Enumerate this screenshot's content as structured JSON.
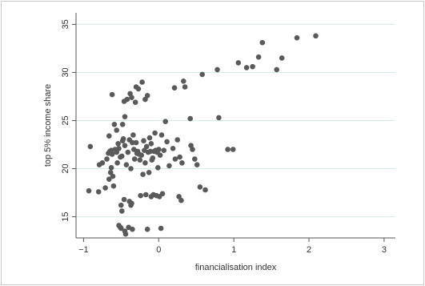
{
  "chart_data": {
    "type": "scatter",
    "title": "",
    "xlabel": "financialisation index",
    "ylabel": "top 5% income share",
    "xlim": [
      -1.1,
      3.15
    ],
    "ylim": [
      12.8,
      36.2
    ],
    "xticks": [
      -1,
      0,
      1,
      2,
      3
    ],
    "yticks": [
      15,
      20,
      25,
      30,
      35
    ],
    "xtick_labels": [
      "−1",
      "0",
      "1",
      "2",
      "3"
    ],
    "ytick_labels": [
      "15",
      "20",
      "25",
      "30",
      "35"
    ],
    "grid": "horizontal",
    "colors": {
      "point": "#5a5a5a",
      "grid": "#d3ecec",
      "axis": "#555555",
      "frame": "#c9c9c9"
    },
    "points": [
      [
        -0.93,
        17.7
      ],
      [
        -0.91,
        22.3
      ],
      [
        -0.8,
        17.6
      ],
      [
        -0.79,
        20.4
      ],
      [
        -0.75,
        20.6
      ],
      [
        -0.71,
        18.0
      ],
      [
        -0.69,
        21.0
      ],
      [
        -0.67,
        21.6
      ],
      [
        -0.66,
        23.4
      ],
      [
        -0.66,
        18.9
      ],
      [
        -0.65,
        21.8
      ],
      [
        -0.64,
        19.6
      ],
      [
        -0.63,
        21.9
      ],
      [
        -0.63,
        20.1
      ],
      [
        -0.62,
        21.5
      ],
      [
        -0.62,
        27.7
      ],
      [
        -0.61,
        19.2
      ],
      [
        -0.6,
        18.2
      ],
      [
        -0.59,
        24.6
      ],
      [
        -0.58,
        22.0
      ],
      [
        -0.56,
        21.7
      ],
      [
        -0.56,
        24.0
      ],
      [
        -0.55,
        20.6
      ],
      [
        -0.54,
        22.6
      ],
      [
        -0.53,
        14.1
      ],
      [
        -0.53,
        22.1
      ],
      [
        -0.51,
        21.2
      ],
      [
        -0.51,
        13.9
      ],
      [
        -0.5,
        16.2
      ],
      [
        -0.5,
        13.8
      ],
      [
        -0.49,
        15.6
      ],
      [
        -0.49,
        21.3
      ],
      [
        -0.48,
        22.9
      ],
      [
        -0.48,
        24.6
      ],
      [
        -0.47,
        23.1
      ],
      [
        -0.46,
        16.8
      ],
      [
        -0.46,
        27.0
      ],
      [
        -0.45,
        25.4
      ],
      [
        -0.45,
        13.5
      ],
      [
        -0.45,
        22.4
      ],
      [
        -0.44,
        13.2
      ],
      [
        -0.43,
        20.4
      ],
      [
        -0.42,
        27.2
      ],
      [
        -0.41,
        21.7
      ],
      [
        -0.4,
        13.9
      ],
      [
        -0.39,
        16.6
      ],
      [
        -0.39,
        23.0
      ],
      [
        -0.38,
        27.8
      ],
      [
        -0.37,
        16.2
      ],
      [
        -0.37,
        20.0
      ],
      [
        -0.36,
        27.4
      ],
      [
        -0.36,
        16.4
      ],
      [
        -0.35,
        22.7
      ],
      [
        -0.35,
        13.7
      ],
      [
        -0.34,
        23.5
      ],
      [
        -0.33,
        22.0
      ],
      [
        -0.32,
        21.0
      ],
      [
        -0.31,
        26.9
      ],
      [
        -0.3,
        28.5
      ],
      [
        -0.3,
        22.7
      ],
      [
        -0.29,
        21.6
      ],
      [
        -0.28,
        21.8
      ],
      [
        -0.27,
        28.3
      ],
      [
        -0.26,
        21.5
      ],
      [
        -0.25,
        20.9
      ],
      [
        -0.24,
        17.2
      ],
      [
        -0.23,
        21.4
      ],
      [
        -0.22,
        29.0
      ],
      [
        -0.21,
        19.4
      ],
      [
        -0.2,
        22.9
      ],
      [
        -0.19,
        21.9
      ],
      [
        -0.18,
        27.2
      ],
      [
        -0.18,
        20.6
      ],
      [
        -0.17,
        17.3
      ],
      [
        -0.16,
        22.3
      ],
      [
        -0.15,
        13.7
      ],
      [
        -0.15,
        27.6
      ],
      [
        -0.14,
        21.7
      ],
      [
        -0.13,
        19.6
      ],
      [
        -0.12,
        23.2
      ],
      [
        -0.11,
        21.8
      ],
      [
        -0.1,
        17.1
      ],
      [
        -0.1,
        22.6
      ],
      [
        -0.09,
        20.9
      ],
      [
        -0.08,
        21.1
      ],
      [
        -0.07,
        17.3
      ],
      [
        -0.06,
        21.8
      ],
      [
        -0.05,
        23.7
      ],
      [
        -0.04,
        21.9
      ],
      [
        -0.03,
        17.2
      ],
      [
        -0.02,
        21.7
      ],
      [
        -0.01,
        20.1
      ],
      [
        0.0,
        22.0
      ],
      [
        0.01,
        17.1
      ],
      [
        0.02,
        21.4
      ],
      [
        0.03,
        13.8
      ],
      [
        0.04,
        23.5
      ],
      [
        0.05,
        17.4
      ],
      [
        0.07,
        21.9
      ],
      [
        0.09,
        24.9
      ],
      [
        0.11,
        22.8
      ],
      [
        0.14,
        20.3
      ],
      [
        0.19,
        22.1
      ],
      [
        0.21,
        28.4
      ],
      [
        0.22,
        21.0
      ],
      [
        0.25,
        23.0
      ],
      [
        0.27,
        17.1
      ],
      [
        0.28,
        21.2
      ],
      [
        0.3,
        16.7
      ],
      [
        0.31,
        20.6
      ],
      [
        0.33,
        29.1
      ],
      [
        0.35,
        28.5
      ],
      [
        0.42,
        25.2
      ],
      [
        0.43,
        22.4
      ],
      [
        0.45,
        22.0
      ],
      [
        0.48,
        21.0
      ],
      [
        0.51,
        20.4
      ],
      [
        0.55,
        18.1
      ],
      [
        0.58,
        29.8
      ],
      [
        0.62,
        17.8
      ],
      [
        0.78,
        30.3
      ],
      [
        0.8,
        25.3
      ],
      [
        0.92,
        22.0
      ],
      [
        0.99,
        22.0
      ],
      [
        1.06,
        31.0
      ],
      [
        1.17,
        30.5
      ],
      [
        1.25,
        30.6
      ],
      [
        1.33,
        31.6
      ],
      [
        1.38,
        33.1
      ],
      [
        1.57,
        30.3
      ],
      [
        1.64,
        31.5
      ],
      [
        1.84,
        33.6
      ],
      [
        2.09,
        33.8
      ]
    ]
  }
}
